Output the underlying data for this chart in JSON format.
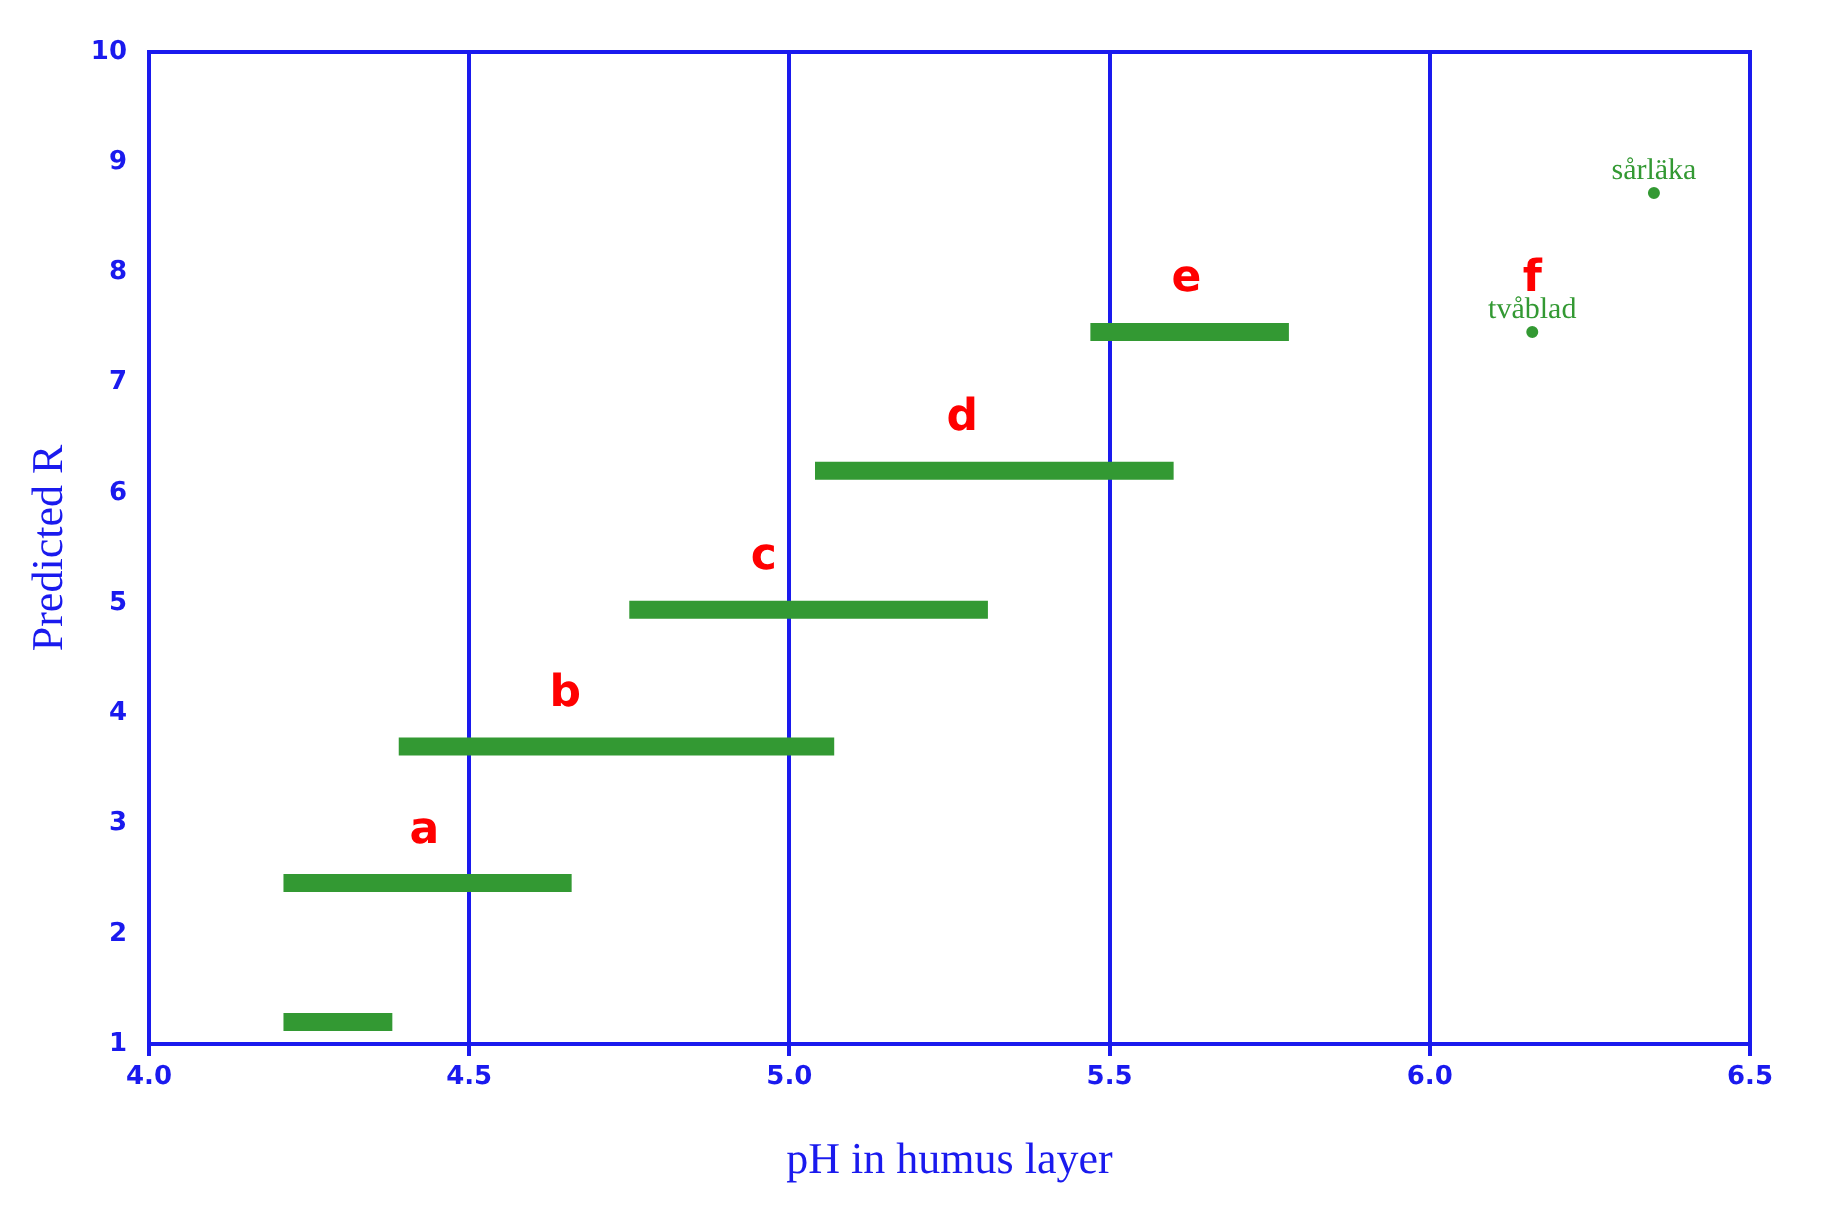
{
  "chart_data": {
    "type": "line",
    "xlabel": "pH in humus layer",
    "ylabel": "Predicted R",
    "xlim": [
      4,
      6.5
    ],
    "xticks": [
      {
        "value": 4,
        "label": "4.0"
      },
      {
        "value": 4.5,
        "label": "4.5"
      },
      {
        "value": 5,
        "label": "5.0"
      },
      {
        "value": 5.5,
        "label": "5.5"
      },
      {
        "value": 6,
        "label": "6.0"
      },
      {
        "value": 6.5,
        "label": "6.5"
      }
    ],
    "ylim": [
      1,
      10
    ],
    "yticks": [
      1,
      2,
      3,
      4,
      5,
      6,
      7,
      8,
      9,
      10
    ],
    "grid": "x",
    "legend": false,
    "line_style": "solid",
    "series": [
      {
        "color": "#339933",
        "x": [
          4.21,
          4.38
        ],
        "values": [
          1.2,
          1.2
        ]
      },
      {
        "color": "#339933",
        "x": [
          4.21,
          4.66
        ],
        "values": [
          2.46,
          2.46
        ]
      },
      {
        "color": "#339933",
        "x": [
          4.39,
          5.07
        ],
        "values": [
          3.7,
          3.7
        ]
      },
      {
        "color": "#339933",
        "x": [
          4.75,
          5.31
        ],
        "values": [
          4.94,
          4.94
        ]
      },
      {
        "color": "#339933",
        "x": [
          5.04,
          5.6
        ],
        "values": [
          6.2,
          6.2
        ]
      },
      {
        "color": "#339933",
        "x": [
          5.47,
          5.78
        ],
        "values": [
          7.46,
          7.46
        ]
      },
      {
        "type": "scatter",
        "name": "tvåblad",
        "color": "#339933",
        "x": [
          6.16
        ],
        "values": [
          7.46
        ]
      },
      {
        "type": "scatter",
        "name": "sårläka",
        "color": "#339933",
        "x": [
          6.35
        ],
        "values": [
          8.72
        ]
      }
    ],
    "annotations": [
      {
        "text": "a",
        "x": 4.43,
        "y": 2.46
      },
      {
        "text": "b",
        "x": 4.65,
        "y": 3.7
      },
      {
        "text": "c",
        "x": 4.96,
        "y": 4.94
      },
      {
        "text": "d",
        "x": 5.27,
        "y": 6.2
      },
      {
        "text": "e",
        "x": 5.62,
        "y": 7.46
      },
      {
        "text": "f",
        "x": 6.16,
        "y": 7.46
      }
    ]
  }
}
